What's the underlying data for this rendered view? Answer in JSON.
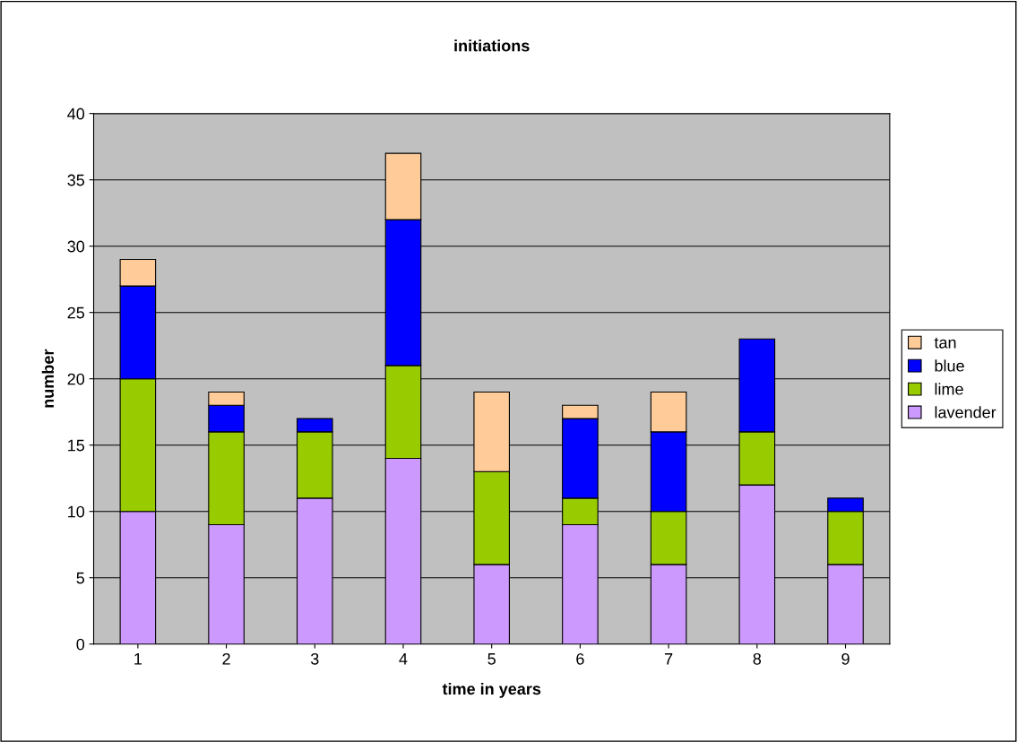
{
  "chart_data": {
    "type": "bar",
    "title": "initiations",
    "xlabel": "time in years",
    "ylabel": "number",
    "categories": [
      "1",
      "2",
      "3",
      "4",
      "5",
      "6",
      "7",
      "8",
      "9"
    ],
    "stacked": true,
    "series": [
      {
        "name": "lavender",
        "color": "#cc99ff",
        "values": [
          10,
          9,
          11,
          14,
          6,
          9,
          6,
          12,
          6
        ]
      },
      {
        "name": "lime",
        "color": "#99cc00",
        "values": [
          10,
          7,
          5,
          7,
          7,
          2,
          4,
          4,
          4
        ]
      },
      {
        "name": "blue",
        "color": "#0000ff",
        "values": [
          7,
          2,
          1,
          11,
          0,
          6,
          6,
          7,
          1
        ]
      },
      {
        "name": "tan",
        "color": "#ffcc99",
        "values": [
          2,
          1,
          0,
          5,
          6,
          1,
          3,
          0,
          0
        ]
      }
    ],
    "ylim": [
      0,
      40
    ],
    "yticks": [
      0,
      5,
      10,
      15,
      20,
      25,
      30,
      35,
      40
    ],
    "grid": "y",
    "legend": "right"
  }
}
